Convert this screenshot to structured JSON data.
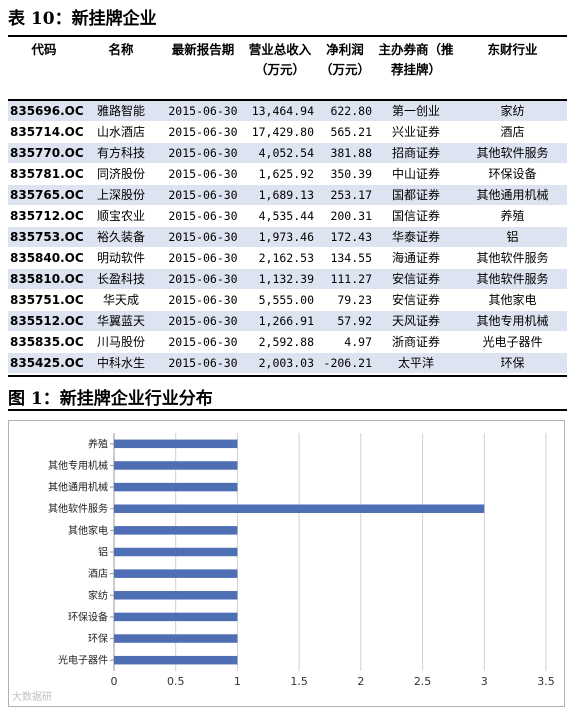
{
  "table_title": "表 10：新挂牌企业",
  "headers": [
    "代码",
    "名称",
    "最新报告期",
    "营业总收入（万元）",
    "净利润（万元）",
    "主办券商（推荐挂牌）",
    "东财行业"
  ],
  "rows": [
    {
      "code": "835696.OC",
      "name": "雅路智能",
      "date": "2015-06-30",
      "revenue": "13,464.94",
      "profit": "622.80",
      "broker": "第一创业",
      "industry": "家纺"
    },
    {
      "code": "835714.OC",
      "name": "山水酒店",
      "date": "2015-06-30",
      "revenue": "17,429.80",
      "profit": "565.21",
      "broker": "兴业证券",
      "industry": "酒店"
    },
    {
      "code": "835770.OC",
      "name": "有方科技",
      "date": "2015-06-30",
      "revenue": "4,052.54",
      "profit": "381.88",
      "broker": "招商证券",
      "industry": "其他软件服务"
    },
    {
      "code": "835781.OC",
      "name": "同济股份",
      "date": "2015-06-30",
      "revenue": "1,625.92",
      "profit": "350.39",
      "broker": "中山证券",
      "industry": "环保设备"
    },
    {
      "code": "835765.OC",
      "name": "上深股份",
      "date": "2015-06-30",
      "revenue": "1,689.13",
      "profit": "253.17",
      "broker": "国都证券",
      "industry": "其他通用机械"
    },
    {
      "code": "835712.OC",
      "name": "顺宝农业",
      "date": "2015-06-30",
      "revenue": "4,535.44",
      "profit": "200.31",
      "broker": "国信证券",
      "industry": "养殖"
    },
    {
      "code": "835753.OC",
      "name": "裕久装备",
      "date": "2015-06-30",
      "revenue": "1,973.46",
      "profit": "172.43",
      "broker": "华泰证券",
      "industry": "铝"
    },
    {
      "code": "835840.OC",
      "name": "明动软件",
      "date": "2015-06-30",
      "revenue": "2,162.53",
      "profit": "134.55",
      "broker": "海通证券",
      "industry": "其他软件服务"
    },
    {
      "code": "835810.OC",
      "name": "长盈科技",
      "date": "2015-06-30",
      "revenue": "1,132.39",
      "profit": "111.27",
      "broker": "安信证券",
      "industry": "其他软件服务"
    },
    {
      "code": "835751.OC",
      "name": "华天成",
      "date": "2015-06-30",
      "revenue": "5,555.00",
      "profit": "79.23",
      "broker": "安信证券",
      "industry": "其他家电"
    },
    {
      "code": "835512.OC",
      "name": "华翼蓝天",
      "date": "2015-06-30",
      "revenue": "1,266.91",
      "profit": "57.92",
      "broker": "天风证券",
      "industry": "其他专用机械"
    },
    {
      "code": "835835.OC",
      "name": "川马股份",
      "date": "2015-06-30",
      "revenue": "2,592.88",
      "profit": "4.97",
      "broker": "浙商证券",
      "industry": "光电子器件"
    },
    {
      "code": "835425.OC",
      "name": "中科水生",
      "date": "2015-06-30",
      "revenue": "2,003.03",
      "profit": "-206.21",
      "broker": "太平洋",
      "industry": "环保"
    }
  ],
  "figure_title": "图 1：新挂牌企业行业分布",
  "watermark": "大数据研",
  "colors": {
    "bar": "#4f6fb5",
    "row_shade": "#dde3f0",
    "grid": "#d0d0d0"
  },
  "chart_data": {
    "type": "bar",
    "orientation": "horizontal",
    "categories": [
      "养殖",
      "其他专用机械",
      "其他通用机械",
      "其他软件服务",
      "其他家电",
      "铝",
      "酒店",
      "家纺",
      "环保设备",
      "环保",
      "光电子器件"
    ],
    "values": [
      1,
      1,
      1,
      3,
      1,
      1,
      1,
      1,
      1,
      1,
      1
    ],
    "xlim": [
      0,
      3.5
    ],
    "xticks": [
      "0",
      "0.5",
      "1",
      "1.5",
      "2",
      "2.5",
      "3",
      "3.5"
    ],
    "grid": true,
    "legend": "none",
    "title": "",
    "xlabel": "",
    "ylabel": ""
  }
}
